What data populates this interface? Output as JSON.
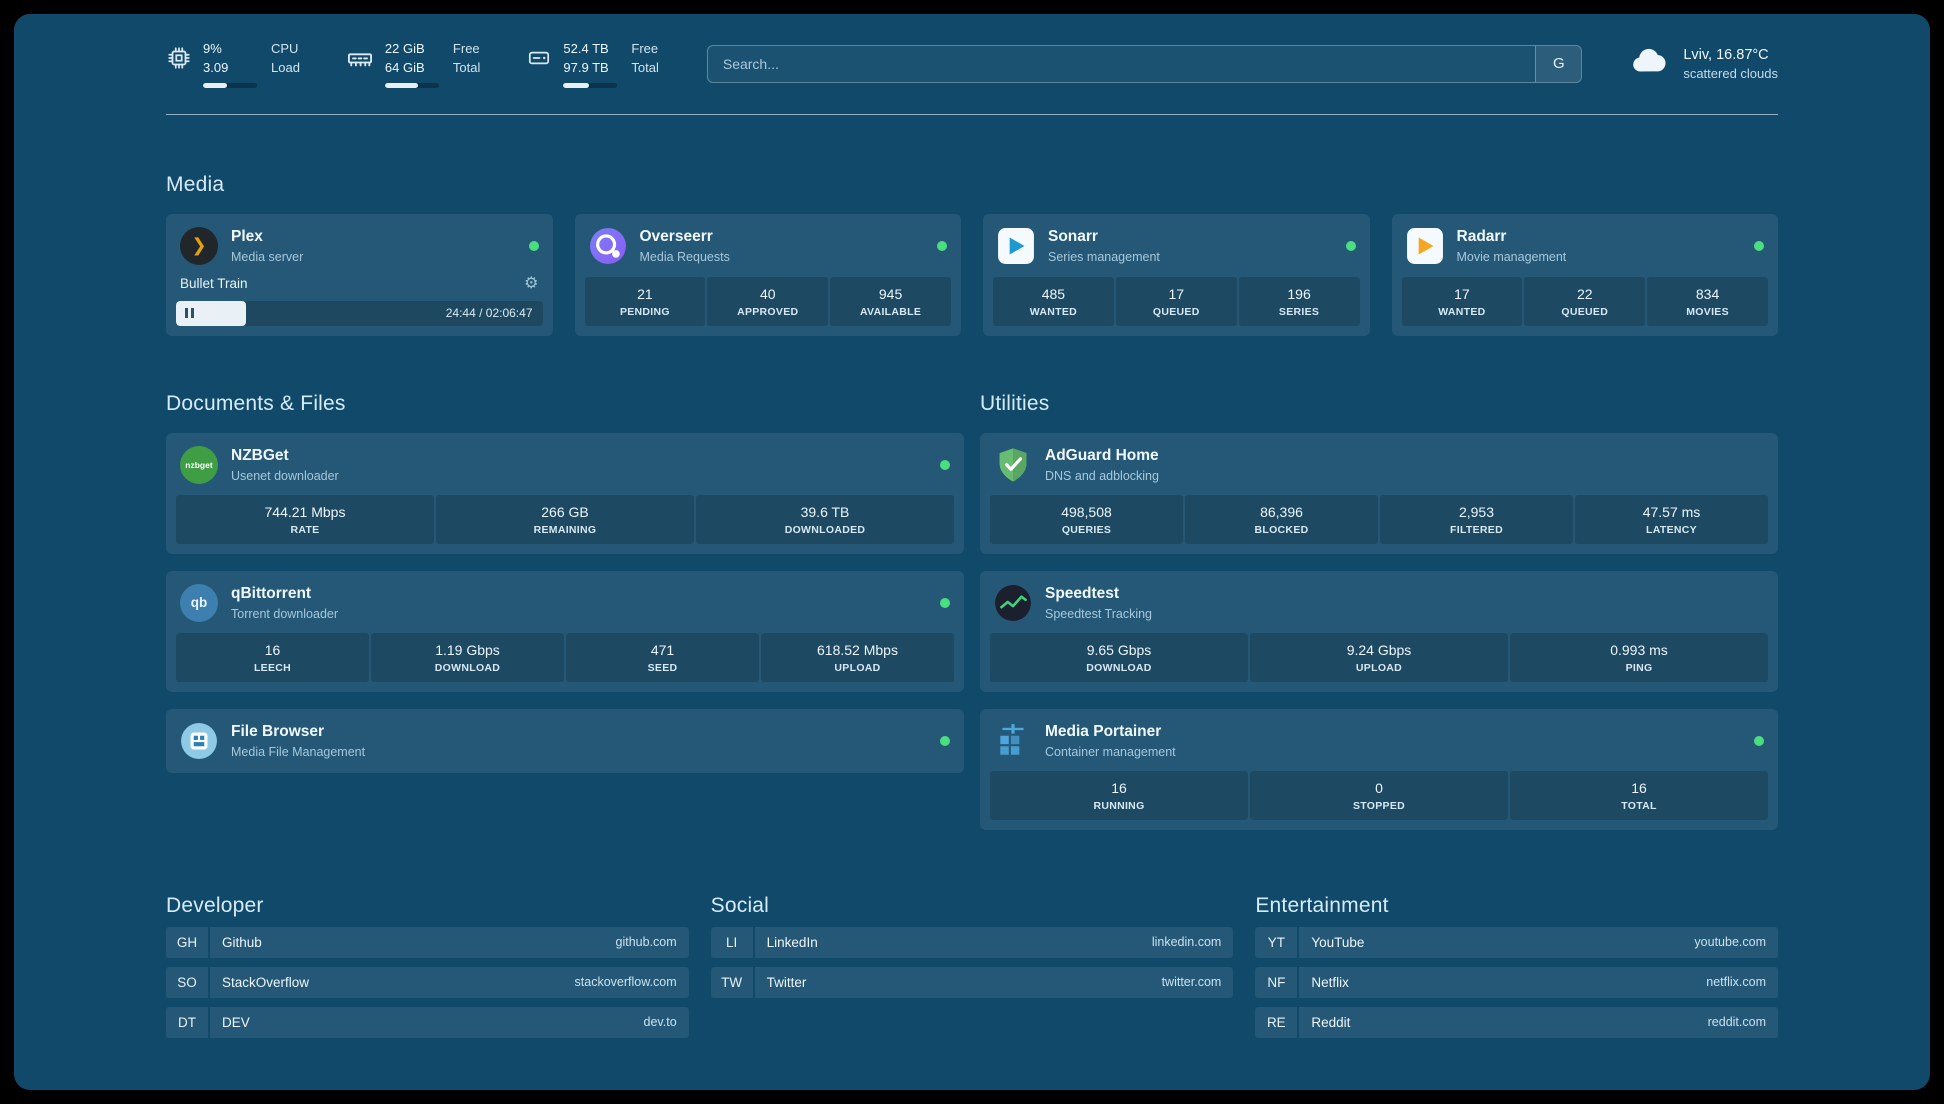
{
  "colors": {
    "background": "#10496a",
    "card": "rgba(255,255,255,0.085)",
    "status_green": "#4ade80",
    "plex_amber": "#e5a00d"
  },
  "topbar": {
    "cpu": {
      "value1": "9%",
      "value2": "3.09",
      "label1": "CPU",
      "label2": "Load",
      "bar": "45%"
    },
    "ram": {
      "value1": "22 GiB",
      "value2": "64 GiB",
      "label1": "Free",
      "label2": "Total",
      "bar": "62%"
    },
    "disk": {
      "value1": "52.4 TB",
      "value2": "97.9 TB",
      "label1": "Free",
      "label2": "Total",
      "bar": "47%"
    },
    "search": {
      "placeholder": "Search...",
      "provider": "G"
    },
    "weather": {
      "location": "Lviv, 16.87°C",
      "condition": "scattered clouds"
    }
  },
  "media": {
    "title": "Media",
    "plex": {
      "name": "Plex",
      "subtitle": "Media server",
      "now_playing": "Bullet Train",
      "time": "24:44 / 02:06:47",
      "progress": "19%"
    },
    "overseerr": {
      "name": "Overseerr",
      "subtitle": "Media Requests",
      "stats": [
        {
          "value": "21",
          "label": "PENDING"
        },
        {
          "value": "40",
          "label": "APPROVED"
        },
        {
          "value": "945",
          "label": "AVAILABLE"
        }
      ]
    },
    "sonarr": {
      "name": "Sonarr",
      "subtitle": "Series management",
      "stats": [
        {
          "value": "485",
          "label": "WANTED"
        },
        {
          "value": "17",
          "label": "QUEUED"
        },
        {
          "value": "196",
          "label": "SERIES"
        }
      ]
    },
    "radarr": {
      "name": "Radarr",
      "subtitle": "Movie management",
      "stats": [
        {
          "value": "17",
          "label": "WANTED"
        },
        {
          "value": "22",
          "label": "QUEUED"
        },
        {
          "value": "834",
          "label": "MOVIES"
        }
      ]
    }
  },
  "documents": {
    "title": "Documents & Files",
    "nzbget": {
      "name": "NZBGet",
      "subtitle": "Usenet downloader",
      "icon_text": "nzbget",
      "stats": [
        {
          "value": "744.21 Mbps",
          "label": "RATE"
        },
        {
          "value": "266 GB",
          "label": "REMAINING"
        },
        {
          "value": "39.6 TB",
          "label": "DOWNLOADED"
        }
      ]
    },
    "qbittorrent": {
      "name": "qBittorrent",
      "subtitle": "Torrent downloader",
      "icon_text": "qb",
      "stats": [
        {
          "value": "16",
          "label": "LEECH"
        },
        {
          "value": "1.19 Gbps",
          "label": "DOWNLOAD"
        },
        {
          "value": "471",
          "label": "SEED"
        },
        {
          "value": "618.52 Mbps",
          "label": "UPLOAD"
        }
      ]
    },
    "filebrowser": {
      "name": "File Browser",
      "subtitle": "Media File Management"
    }
  },
  "utilities": {
    "title": "Utilities",
    "adguard": {
      "name": "AdGuard Home",
      "subtitle": "DNS and adblocking",
      "stats": [
        {
          "value": "498,508",
          "label": "QUERIES"
        },
        {
          "value": "86,396",
          "label": "BLOCKED"
        },
        {
          "value": "2,953",
          "label": "FILTERED"
        },
        {
          "value": "47.57 ms",
          "label": "LATENCY"
        }
      ]
    },
    "speedtest": {
      "name": "Speedtest",
      "subtitle": "Speedtest Tracking",
      "stats": [
        {
          "value": "9.65 Gbps",
          "label": "DOWNLOAD"
        },
        {
          "value": "9.24 Gbps",
          "label": "UPLOAD"
        },
        {
          "value": "0.993 ms",
          "label": "PING"
        }
      ]
    },
    "portainer": {
      "name": "Media Portainer",
      "subtitle": "Container management",
      "stats": [
        {
          "value": "16",
          "label": "RUNNING"
        },
        {
          "value": "0",
          "label": "STOPPED"
        },
        {
          "value": "16",
          "label": "TOTAL"
        }
      ]
    }
  },
  "bookmarks": {
    "developer": {
      "title": "Developer",
      "items": [
        {
          "abbr": "GH",
          "name": "Github",
          "url": "github.com"
        },
        {
          "abbr": "SO",
          "name": "StackOverflow",
          "url": "stackoverflow.com"
        },
        {
          "abbr": "DT",
          "name": "DEV",
          "url": "dev.to"
        }
      ]
    },
    "social": {
      "title": "Social",
      "items": [
        {
          "abbr": "LI",
          "name": "LinkedIn",
          "url": "linkedin.com"
        },
        {
          "abbr": "TW",
          "name": "Twitter",
          "url": "twitter.com"
        }
      ]
    },
    "entertainment": {
      "title": "Entertainment",
      "items": [
        {
          "abbr": "YT",
          "name": "YouTube",
          "url": "youtube.com"
        },
        {
          "abbr": "NF",
          "name": "Netflix",
          "url": "netflix.com"
        },
        {
          "abbr": "RE",
          "name": "Reddit",
          "url": "reddit.com"
        }
      ]
    }
  },
  "glyphs": {
    "plex": "❯",
    "gear": "⚙"
  }
}
